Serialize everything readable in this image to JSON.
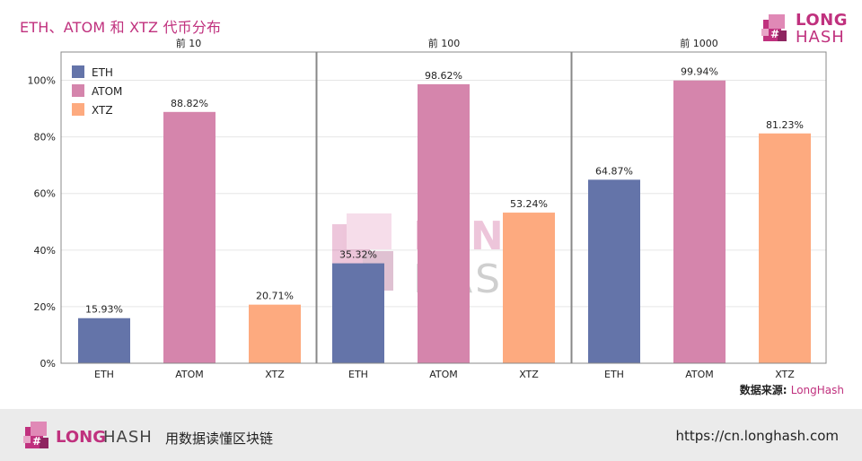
{
  "header": {
    "title": "ETH、ATOM 和 XTZ 代币分布",
    "brand_line1": "LONG",
    "brand_line2": "HASH"
  },
  "colors": {
    "ETH": "#6474a9",
    "ATOM": "#d585ac",
    "XTZ": "#fdaa7f",
    "brand": "#c0317e"
  },
  "chart_data": {
    "type": "bar",
    "ylim": [
      0,
      1.1
    ],
    "yticks": [
      0,
      0.2,
      0.4,
      0.6,
      0.8,
      1.0
    ],
    "ytick_labels": [
      "0%",
      "20%",
      "40%",
      "60%",
      "80%",
      "100%"
    ],
    "legend": [
      "ETH",
      "ATOM",
      "XTZ"
    ],
    "legend_position": "top-left",
    "watermark": {
      "line1": "LONG",
      "line2": "HASH"
    },
    "panels": [
      {
        "title": "前 10",
        "categories": [
          "ETH",
          "ATOM",
          "XTZ"
        ],
        "values": [
          0.1593,
          0.8882,
          0.2071
        ],
        "labels": [
          "15.93%",
          "88.82%",
          "20.71%"
        ]
      },
      {
        "title": "前 100",
        "categories": [
          "ETH",
          "ATOM",
          "XTZ"
        ],
        "values": [
          0.3532,
          0.9862,
          0.5324
        ],
        "labels": [
          "35.32%",
          "98.62%",
          "53.24%"
        ]
      },
      {
        "title": "前 1000",
        "categories": [
          "ETH",
          "ATOM",
          "XTZ"
        ],
        "values": [
          0.6487,
          0.9994,
          0.8123
        ],
        "labels": [
          "64.87%",
          "99.94%",
          "81.23%"
        ]
      }
    ]
  },
  "source": {
    "label": "数据来源:",
    "name": "LongHash"
  },
  "footer": {
    "word_long": "LONG",
    "word_hash": "HASH",
    "slogan": "用数据读懂区块链",
    "url": "https://cn.longhash.com"
  }
}
